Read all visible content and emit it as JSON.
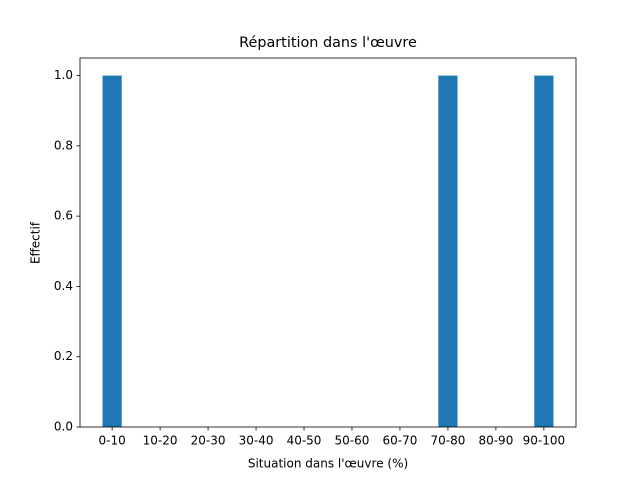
{
  "chart_data": {
    "type": "bar",
    "title": "Répartition dans l'œuvre",
    "x_label": "Situation dans l'œuvre (%)",
    "y_label": "Effectif",
    "categories": [
      "0-10",
      "10-20",
      "20-30",
      "30-40",
      "40-50",
      "50-60",
      "60-70",
      "70-80",
      "80-90",
      "90-100"
    ],
    "values": [
      1,
      0,
      0,
      0,
      0,
      0,
      0,
      1,
      0,
      1
    ],
    "color": "#1f77b4",
    "ylim": [
      0,
      1.05
    ],
    "yticks": [
      {
        "value": 0,
        "label": "0.0"
      },
      0.2,
      0.4,
      0.6,
      0.8,
      {
        "value": 1,
        "label": "1.0"
      }
    ],
    "grid": false
  }
}
